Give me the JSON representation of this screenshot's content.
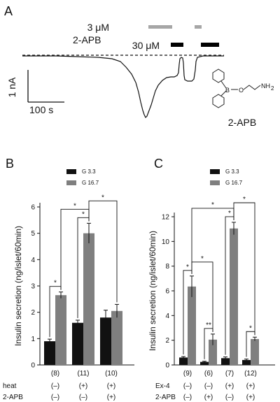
{
  "panel_a": {
    "label": "A",
    "drug_label": "2-APB",
    "conc_low": "3 μM",
    "conc_high": "30 μM",
    "scale_current": "1 nA",
    "scale_time": "100 s",
    "structure_name": "2-APB",
    "structure_atoms": {
      "b": "B",
      "o": "O",
      "nh2": "NH",
      "sub2": "2"
    },
    "colors": {
      "bar_low": "#a6a6a6",
      "bar_high": "#000000",
      "trace": "#111111"
    }
  },
  "legend": {
    "g33": "G 3.3",
    "g167": "G 16.7"
  },
  "colors": {
    "g33": "#111111",
    "g167": "#7f7f7f"
  },
  "chart_data": [
    {
      "panel": "B",
      "type": "bar",
      "ylabel": "Insulin secretion (ng/islet/60min)",
      "ylim": [
        0,
        6
      ],
      "yticks": [
        0,
        1,
        2,
        3,
        4,
        5,
        6
      ],
      "groups": [
        {
          "n": "(8)",
          "conditions": [
            "(–)",
            "(–)"
          ]
        },
        {
          "n": "(11)",
          "conditions": [
            "(+)",
            "(–)"
          ]
        },
        {
          "n": "(10)",
          "conditions": [
            "(+)",
            "(+)"
          ]
        }
      ],
      "condition_labels": [
        "heat",
        "2-APB"
      ],
      "series": [
        {
          "name": "G 3.3",
          "values": [
            0.9,
            1.6,
            1.8
          ],
          "errors": [
            0.08,
            0.1,
            0.28
          ]
        },
        {
          "name": "G 16.7",
          "values": [
            2.65,
            5.0,
            2.05
          ],
          "errors": [
            0.12,
            0.38,
            0.25
          ]
        }
      ],
      "significance": [
        {
          "from": [
            0,
            0
          ],
          "to": [
            0,
            1
          ],
          "label": "*"
        },
        {
          "from": [
            1,
            0
          ],
          "to": [
            1,
            1
          ],
          "label": "*"
        },
        {
          "from": [
            0,
            1
          ],
          "to": [
            1,
            1
          ],
          "label": "*"
        },
        {
          "from": [
            1,
            1
          ],
          "to": [
            2,
            1
          ],
          "label": "*"
        }
      ]
    },
    {
      "panel": "C",
      "type": "bar",
      "ylabel": "Insulin secretion (ng/islet/60min)",
      "ylim": [
        0,
        12
      ],
      "yticks": [
        0,
        2,
        4,
        6,
        8,
        10,
        12
      ],
      "groups": [
        {
          "n": "(9)",
          "conditions": [
            "(–)",
            "(–)"
          ]
        },
        {
          "n": "(6)",
          "conditions": [
            "(–)",
            "(+)"
          ]
        },
        {
          "n": "(7)",
          "conditions": [
            "(+)",
            "(–)"
          ]
        },
        {
          "n": "(12)",
          "conditions": [
            "(+)",
            "(+)"
          ]
        }
      ],
      "condition_labels": [
        "Ex-4",
        "2-APB"
      ],
      "series": [
        {
          "name": "G 3.3",
          "values": [
            0.6,
            0.25,
            0.55,
            0.4
          ],
          "errors": [
            0.08,
            0.05,
            0.1,
            0.08
          ]
        },
        {
          "name": "G 16.7",
          "values": [
            6.35,
            2.05,
            11.05,
            2.1
          ],
          "errors": [
            0.85,
            0.45,
            0.5,
            0.15
          ]
        }
      ],
      "significance": [
        {
          "from": [
            0,
            0
          ],
          "to": [
            0,
            1
          ],
          "label": "*"
        },
        {
          "from": [
            1,
            0
          ],
          "to": [
            1,
            1
          ],
          "label": "**"
        },
        {
          "from": [
            0,
            1
          ],
          "to": [
            1,
            1
          ],
          "label": "*"
        },
        {
          "from": [
            2,
            0
          ],
          "to": [
            2,
            1
          ],
          "label": "*"
        },
        {
          "from": [
            0,
            1
          ],
          "to": [
            2,
            1
          ],
          "label": "*"
        },
        {
          "from": [
            3,
            0
          ],
          "to": [
            3,
            1
          ],
          "label": "*"
        },
        {
          "from": [
            2,
            1
          ],
          "to": [
            3,
            1
          ],
          "label": "*"
        }
      ]
    }
  ]
}
